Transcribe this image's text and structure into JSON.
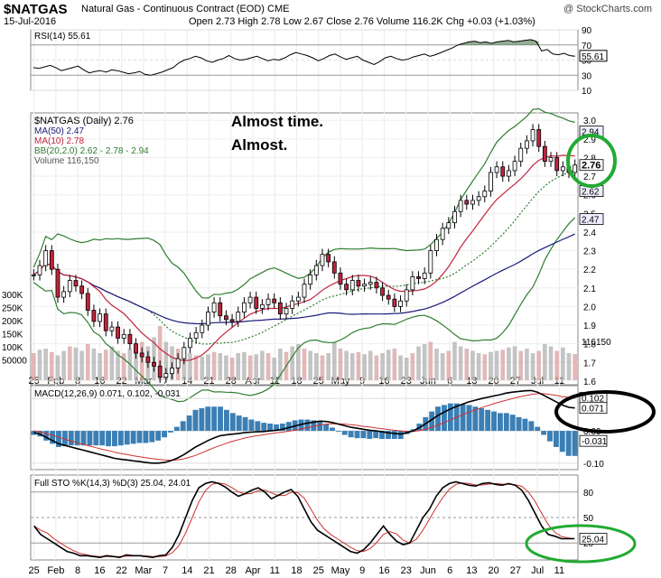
{
  "header": {
    "ticker": "$NATGAS",
    "description": "Natural Gas - Continuous Contract (EOD) CME",
    "date": "15-Jul-2016",
    "ohlc": "Open 2.73  High 2.78  Low 2.67  Close 2.76  Volume 116.2K  Chg +0.03 (+1.03%)",
    "watermark": "@ StockCharts.com"
  },
  "chart_data": [
    {
      "type": "line",
      "panel": "RSI",
      "legend": "RSI(14) 55.61",
      "y_ticks": [
        "90",
        "70",
        "50",
        "30",
        "10"
      ],
      "ylim": [
        10,
        90
      ],
      "last_label": "55.61",
      "values": [
        40,
        39,
        41,
        43,
        40,
        36,
        38,
        40,
        42,
        37,
        33,
        35,
        36,
        34,
        37,
        36,
        34,
        32,
        33,
        35,
        31,
        30,
        32,
        34,
        37,
        40,
        46,
        50,
        52,
        55,
        53,
        49,
        47,
        50,
        52,
        56,
        52,
        50,
        51,
        53,
        55,
        52,
        49,
        51,
        50,
        53,
        57,
        60,
        58,
        56,
        53,
        49,
        52,
        56,
        58,
        54,
        51,
        53,
        55,
        50,
        47,
        44,
        48,
        53,
        55,
        52,
        50,
        51,
        54,
        56,
        58,
        55,
        57,
        60,
        63,
        66,
        70,
        72,
        74,
        75,
        73,
        74,
        72,
        74,
        75,
        76,
        74,
        75,
        76,
        77,
        75,
        62,
        64,
        58,
        57,
        59,
        56,
        55
      ]
    },
    {
      "type": "candlestick",
      "panel": "Price",
      "legend": [
        "$NATGAS (Daily) 2.76",
        "MA(50) 2.47",
        "MA(10) 2.78",
        "BB(20,2.0) 2.62 - 2.78 - 2.94",
        "Volume 116,150"
      ],
      "annotation": [
        "Almost time.",
        "Almost."
      ],
      "y_ticks": [
        "3.0",
        "2.9",
        "2.8",
        "2.7",
        "2.6",
        "2.5",
        "2.4",
        "2.3",
        "2.2",
        "2.1",
        "2.0",
        "1.9",
        "1.8",
        "1.7",
        "1.6"
      ],
      "ylim": [
        1.58,
        3.04
      ],
      "right_labels": [
        "2.94",
        "2.76",
        "2.62",
        "2.47",
        "116150"
      ],
      "volume_axis": [
        "300K",
        "250K",
        "200K",
        "150K",
        "100K",
        "50000"
      ],
      "x_labels": [
        "25",
        "Feb",
        "8",
        "16",
        "22",
        "Mar",
        "7",
        "14",
        "21",
        "28",
        "Apr",
        "11",
        "18",
        "25",
        "May",
        "9",
        "16",
        "23",
        "Jun",
        "6",
        "13",
        "20",
        "27",
        "Jul",
        "11"
      ],
      "closes": [
        2.17,
        2.22,
        2.3,
        2.2,
        2.05,
        2.08,
        2.14,
        2.11,
        2.07,
        1.98,
        1.92,
        1.96,
        1.87,
        1.89,
        1.83,
        1.85,
        1.8,
        1.75,
        1.73,
        1.7,
        1.68,
        1.62,
        1.64,
        1.67,
        1.72,
        1.78,
        1.83,
        1.86,
        1.9,
        1.97,
        2.02,
        1.95,
        1.93,
        1.92,
        1.97,
        2.02,
        2.05,
        1.99,
        2.01,
        2.04,
        2.02,
        1.96,
        1.99,
        2.03,
        2.05,
        2.12,
        2.17,
        2.22,
        2.28,
        2.24,
        2.18,
        2.12,
        2.09,
        2.14,
        2.11,
        2.12,
        2.13,
        2.1,
        2.06,
        2.04,
        2.0,
        2.03,
        2.09,
        2.16,
        2.15,
        2.18,
        2.3,
        2.36,
        2.42,
        2.45,
        2.51,
        2.57,
        2.55,
        2.57,
        2.59,
        2.62,
        2.72,
        2.75,
        2.7,
        2.73,
        2.78,
        2.85,
        2.89,
        2.95,
        2.86,
        2.78,
        2.8,
        2.73,
        2.75,
        2.72,
        2.76
      ],
      "volume": [
        120,
        135,
        140,
        125,
        110,
        130,
        150,
        145,
        130,
        160,
        140,
        120,
        135,
        150,
        130,
        120,
        140,
        160,
        170,
        150,
        190,
        240,
        170,
        150,
        140,
        130,
        120,
        110,
        105,
        115,
        125,
        120,
        110,
        100,
        120,
        125,
        110,
        115,
        130,
        120,
        100,
        140,
        125,
        150,
        160,
        140,
        130,
        120,
        110,
        120,
        170,
        140,
        130,
        120,
        125,
        115,
        130,
        110,
        120,
        135,
        140,
        110,
        100,
        120,
        150,
        160,
        170,
        140,
        120,
        130,
        170,
        150,
        140,
        130,
        120,
        115,
        125,
        130,
        135,
        145,
        150,
        130,
        140,
        120,
        130,
        160,
        150,
        130,
        145,
        120,
        116
      ]
    },
    {
      "type": "line",
      "panel": "MACD",
      "legend": "MACD(12,26,9) 0.071, 0.102, -0.031",
      "y_ticks": [
        "0.10",
        "0.00",
        "-0.10"
      ],
      "ylim": [
        -0.12,
        0.14
      ],
      "right_labels": [
        "0.102",
        "0.071",
        "-0.031"
      ],
      "macd": [
        -0.005,
        -0.01,
        -0.02,
        -0.03,
        -0.04,
        -0.045,
        -0.05,
        -0.055,
        -0.06,
        -0.065,
        -0.07,
        -0.075,
        -0.08,
        -0.085,
        -0.088,
        -0.09,
        -0.093,
        -0.095,
        -0.098,
        -0.1,
        -0.1,
        -0.098,
        -0.093,
        -0.085,
        -0.075,
        -0.063,
        -0.05,
        -0.04,
        -0.03,
        -0.022,
        -0.015,
        -0.012,
        -0.01,
        -0.008,
        -0.005,
        -0.004,
        -0.003,
        -0.002,
        0.0,
        0.002,
        0.005,
        0.01,
        0.015,
        0.02,
        0.024,
        0.027,
        0.03,
        0.029,
        0.026,
        0.021,
        0.016,
        0.011,
        0.008,
        0.005,
        0.002,
        0.0,
        -0.003,
        -0.006,
        -0.008,
        -0.01,
        -0.006,
        0.0,
        0.01,
        0.022,
        0.035,
        0.048,
        0.058,
        0.068,
        0.076,
        0.083,
        0.09,
        0.095,
        0.1,
        0.104,
        0.108,
        0.112,
        0.117,
        0.12,
        0.122,
        0.124,
        0.125,
        0.12,
        0.11,
        0.1,
        0.09,
        0.08,
        0.073,
        0.071
      ],
      "signal": [
        0.0,
        -0.003,
        -0.008,
        -0.014,
        -0.02,
        -0.026,
        -0.032,
        -0.037,
        -0.042,
        -0.047,
        -0.052,
        -0.057,
        -0.061,
        -0.066,
        -0.07,
        -0.073,
        -0.077,
        -0.08,
        -0.083,
        -0.086,
        -0.088,
        -0.09,
        -0.091,
        -0.09,
        -0.087,
        -0.082,
        -0.076,
        -0.068,
        -0.06,
        -0.052,
        -0.045,
        -0.038,
        -0.032,
        -0.027,
        -0.022,
        -0.018,
        -0.015,
        -0.012,
        -0.009,
        -0.006,
        -0.004,
        -0.001,
        0.002,
        0.006,
        0.01,
        0.014,
        0.018,
        0.021,
        0.022,
        0.022,
        0.021,
        0.019,
        0.017,
        0.014,
        0.012,
        0.009,
        0.007,
        0.004,
        0.002,
        0.0,
        -0.002,
        -0.002,
        0.001,
        0.005,
        0.011,
        0.018,
        0.026,
        0.034,
        0.042,
        0.05,
        0.058,
        0.065,
        0.072,
        0.078,
        0.084,
        0.09,
        0.095,
        0.1,
        0.105,
        0.109,
        0.113,
        0.115,
        0.115,
        0.113,
        0.11,
        0.106,
        0.104,
        0.102
      ]
    },
    {
      "type": "line",
      "panel": "Full STO",
      "legend": "Full STO %K(14,3) %D(3) 25.04, 24.01",
      "y_ticks": [
        "80",
        "50",
        "20"
      ],
      "ylim": [
        0,
        100
      ],
      "last_label": "25.04",
      "k": [
        40,
        30,
        25,
        20,
        15,
        10,
        8,
        5,
        5,
        4,
        3,
        5,
        4,
        3,
        6,
        5,
        5,
        4,
        3,
        5,
        6,
        15,
        30,
        50,
        70,
        85,
        90,
        92,
        90,
        86,
        80,
        75,
        78,
        82,
        85,
        80,
        72,
        76,
        80,
        83,
        75,
        60,
        45,
        35,
        30,
        25,
        20,
        15,
        10,
        8,
        12,
        20,
        30,
        40,
        30,
        22,
        18,
        20,
        35,
        50,
        60,
        75,
        85,
        90,
        92,
        90,
        88,
        87,
        90,
        91,
        89,
        88,
        90,
        88,
        82,
        70,
        55,
        40,
        30,
        28,
        25,
        25,
        25
      ]
    }
  ]
}
